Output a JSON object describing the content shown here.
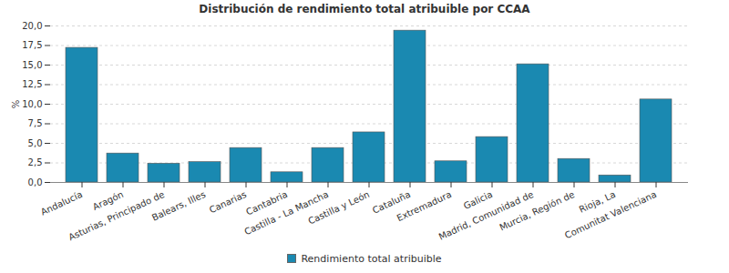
{
  "chart_data": {
    "type": "bar",
    "title": "Distribución de rendimiento total atribuible por CCAA",
    "y_label": "%",
    "categories": [
      "Andalucía",
      "Aragón",
      "Asturias, Principado de",
      "Balears, Illes",
      "Canarias",
      "Cantabria",
      "Castilla - La Mancha",
      "Castilla y León",
      "Cataluña",
      "Extremadura",
      "Galicia",
      "Madrid, Comunidad de",
      "Murcia, Región de",
      "Rioja, La",
      "Comunitat Valenciana"
    ],
    "series": [
      {
        "name": "Rendimiento total atribuible",
        "color": "#1a89b1",
        "values": [
          17.2,
          3.7,
          2.4,
          2.6,
          4.4,
          1.3,
          4.4,
          6.4,
          19.4,
          2.7,
          5.8,
          15.1,
          3.0,
          0.9,
          10.6
        ]
      }
    ],
    "ylim": [
      0,
      20
    ],
    "yticks": [
      {
        "value": 0,
        "label": "0,0"
      },
      {
        "value": 2.5,
        "label": "2,5"
      },
      {
        "value": 5,
        "label": "5,0"
      },
      {
        "value": 7.5,
        "label": "7,5"
      },
      {
        "value": 10,
        "label": "10,0"
      },
      {
        "value": 12.5,
        "label": "12,5"
      },
      {
        "value": 15,
        "label": "15,0"
      },
      {
        "value": 17.5,
        "label": "17,5"
      },
      {
        "value": 20,
        "label": "20,0"
      }
    ],
    "grid": true,
    "legend": "bottom"
  }
}
